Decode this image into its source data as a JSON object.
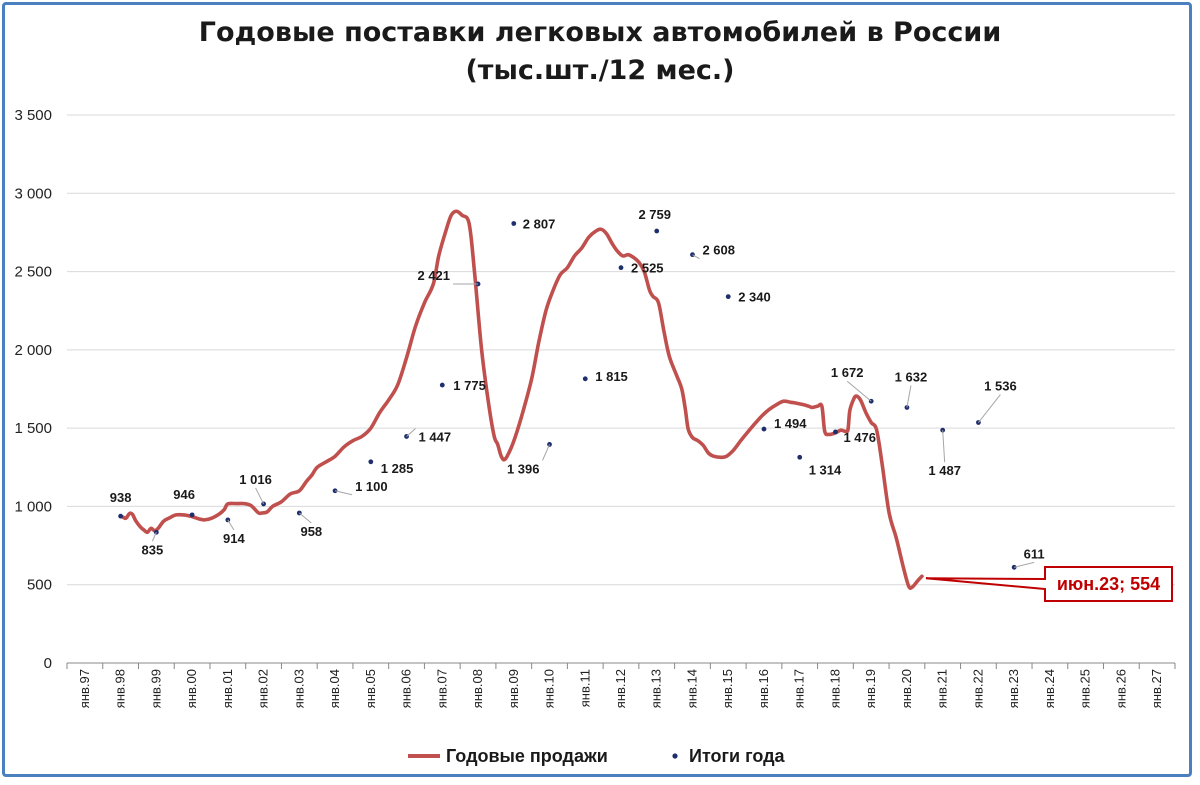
{
  "chart_data": {
    "type": "line",
    "title_line1": "Годовые поставки легковых автомобилей в России",
    "title_line2": "(тыс.шт./12 мес.)",
    "ylim": [
      0,
      3500
    ],
    "y_ticks": [
      "0",
      "500",
      "1 000",
      "1 500",
      "2 000",
      "2 500",
      "3 000",
      "3 500"
    ],
    "y_tick_values": [
      0,
      500,
      1000,
      1500,
      2000,
      2500,
      3000,
      3500
    ],
    "x_categories": [
      "янв.97",
      "янв.98",
      "янв.99",
      "янв.00",
      "янв.01",
      "янв.02",
      "янв.03",
      "янв.04",
      "янв.05",
      "янв.06",
      "янв.07",
      "янв.08",
      "янв.09",
      "янв.10",
      "янв.11",
      "янв.12",
      "янв.13",
      "янв.14",
      "янв.15",
      "янв.16",
      "янв.17",
      "янв.18",
      "янв.19",
      "янв.20",
      "янв.21",
      "янв.22",
      "янв.23",
      "янв.24",
      "янв.25",
      "янв.26",
      "янв.27"
    ],
    "grid": "horizontal",
    "legend_position": "bottom",
    "series": [
      {
        "name": "Годовые продажи",
        "color": "#c0504d",
        "type": "line",
        "points": [
          [
            1.0,
            938
          ],
          [
            1.08,
            930
          ],
          [
            1.15,
            925
          ],
          [
            1.25,
            955
          ],
          [
            1.33,
            950
          ],
          [
            1.42,
            910
          ],
          [
            1.55,
            870
          ],
          [
            1.65,
            850
          ],
          [
            1.75,
            835
          ],
          [
            1.85,
            860
          ],
          [
            1.95,
            845
          ],
          [
            2.05,
            860
          ],
          [
            2.2,
            905
          ],
          [
            2.35,
            925
          ],
          [
            2.55,
            946
          ],
          [
            2.8,
            945
          ],
          [
            3.0,
            935
          ],
          [
            3.2,
            920
          ],
          [
            3.35,
            914
          ],
          [
            3.55,
            925
          ],
          [
            3.75,
            950
          ],
          [
            3.9,
            980
          ],
          [
            4.0,
            1016
          ],
          [
            4.25,
            1018
          ],
          [
            4.45,
            1018
          ],
          [
            4.65,
            1005
          ],
          [
            4.85,
            960
          ],
          [
            4.95,
            958
          ],
          [
            5.1,
            965
          ],
          [
            5.25,
            1000
          ],
          [
            5.5,
            1030
          ],
          [
            5.75,
            1080
          ],
          [
            6.0,
            1100
          ],
          [
            6.2,
            1160
          ],
          [
            6.35,
            1200
          ],
          [
            6.5,
            1250
          ],
          [
            6.75,
            1285
          ],
          [
            7.0,
            1320
          ],
          [
            7.25,
            1380
          ],
          [
            7.5,
            1420
          ],
          [
            7.75,
            1447
          ],
          [
            8.0,
            1500
          ],
          [
            8.25,
            1600
          ],
          [
            8.5,
            1680
          ],
          [
            8.75,
            1775
          ],
          [
            9.0,
            1950
          ],
          [
            9.25,
            2150
          ],
          [
            9.5,
            2300
          ],
          [
            9.75,
            2421
          ],
          [
            9.9,
            2600
          ],
          [
            10.1,
            2760
          ],
          [
            10.25,
            2860
          ],
          [
            10.4,
            2885
          ],
          [
            10.55,
            2860
          ],
          [
            10.75,
            2807
          ],
          [
            10.9,
            2500
          ],
          [
            11.1,
            2000
          ],
          [
            11.3,
            1650
          ],
          [
            11.45,
            1450
          ],
          [
            11.55,
            1396
          ],
          [
            11.65,
            1320
          ],
          [
            11.75,
            1300
          ],
          [
            11.9,
            1360
          ],
          [
            12.05,
            1450
          ],
          [
            12.25,
            1600
          ],
          [
            12.5,
            1815
          ],
          [
            12.7,
            2050
          ],
          [
            12.9,
            2250
          ],
          [
            13.1,
            2380
          ],
          [
            13.3,
            2480
          ],
          [
            13.5,
            2525
          ],
          [
            13.7,
            2600
          ],
          [
            13.9,
            2650
          ],
          [
            14.1,
            2720
          ],
          [
            14.3,
            2759
          ],
          [
            14.45,
            2770
          ],
          [
            14.6,
            2740
          ],
          [
            14.75,
            2680
          ],
          [
            14.9,
            2630
          ],
          [
            15.05,
            2600
          ],
          [
            15.2,
            2608
          ],
          [
            15.35,
            2590
          ],
          [
            15.5,
            2560
          ],
          [
            15.65,
            2500
          ],
          [
            15.8,
            2380
          ],
          [
            15.9,
            2340
          ],
          [
            16.05,
            2300
          ],
          [
            16.2,
            2120
          ],
          [
            16.35,
            1960
          ],
          [
            16.55,
            1840
          ],
          [
            16.7,
            1750
          ],
          [
            16.8,
            1620
          ],
          [
            16.88,
            1494
          ],
          [
            17.0,
            1440
          ],
          [
            17.15,
            1420
          ],
          [
            17.3,
            1390
          ],
          [
            17.45,
            1340
          ],
          [
            17.6,
            1320
          ],
          [
            17.8,
            1314
          ],
          [
            17.95,
            1320
          ],
          [
            18.15,
            1360
          ],
          [
            18.35,
            1420
          ],
          [
            18.55,
            1476
          ],
          [
            18.75,
            1530
          ],
          [
            18.95,
            1580
          ],
          [
            19.15,
            1620
          ],
          [
            19.35,
            1650
          ],
          [
            19.55,
            1672
          ],
          [
            19.75,
            1665
          ],
          [
            19.9,
            1660
          ],
          [
            20.1,
            1650
          ],
          [
            20.25,
            1640
          ],
          [
            20.35,
            1632
          ],
          [
            20.5,
            1640
          ],
          [
            20.62,
            1640
          ],
          [
            20.7,
            1480
          ],
          [
            20.82,
            1460
          ],
          [
            21.0,
            1470
          ],
          [
            21.15,
            1487
          ],
          [
            21.27,
            1480
          ],
          [
            21.35,
            1490
          ],
          [
            21.4,
            1610
          ],
          [
            21.5,
            1680
          ],
          [
            21.58,
            1705
          ],
          [
            21.7,
            1680
          ],
          [
            21.85,
            1600
          ],
          [
            22.0,
            1536
          ],
          [
            22.15,
            1490
          ],
          [
            22.3,
            1280
          ],
          [
            22.5,
            960
          ],
          [
            22.7,
            800
          ],
          [
            22.9,
            611
          ],
          [
            23.05,
            490
          ],
          [
            23.15,
            485
          ],
          [
            23.3,
            525
          ],
          [
            23.42,
            554
          ]
        ]
      },
      {
        "name": "Итоги года",
        "color": "#1f2f6e",
        "type": "markers",
        "points": [
          [
            1,
            938
          ],
          [
            2,
            835
          ],
          [
            3,
            946
          ],
          [
            4,
            914
          ],
          [
            5,
            1016
          ],
          [
            6,
            958
          ],
          [
            7,
            1100
          ],
          [
            8,
            1285
          ],
          [
            9,
            1447
          ],
          [
            10,
            1775
          ],
          [
            11,
            2421
          ],
          [
            12,
            2807
          ],
          [
            13,
            1396
          ],
          [
            14,
            1815
          ],
          [
            15,
            2525
          ],
          [
            16,
            2759
          ],
          [
            17,
            2608
          ],
          [
            18,
            2340
          ],
          [
            19,
            1494
          ],
          [
            20,
            1314
          ],
          [
            21,
            1476
          ],
          [
            22,
            1672
          ],
          [
            23,
            1632
          ],
          [
            24,
            1487
          ],
          [
            25,
            1536
          ],
          [
            26,
            611
          ]
        ]
      }
    ],
    "data_labels": [
      "938",
      "835",
      "946",
      "914",
      "1 016",
      "958",
      "1 100",
      "1 285",
      "1 447",
      "1 775",
      "2 421",
      "2 807",
      "1 396",
      "1 815",
      "2 525",
      "2 759",
      "2 608",
      "2 340",
      "1 494",
      "1 314",
      "1 476",
      "1 672",
      "1 632",
      "1 487",
      "1 536",
      "611"
    ],
    "callout": "июн.23; 554",
    "callout_color": "#c00000"
  },
  "legend": {
    "line_label": "Годовые продажи",
    "marker_label": "Итоги года"
  }
}
